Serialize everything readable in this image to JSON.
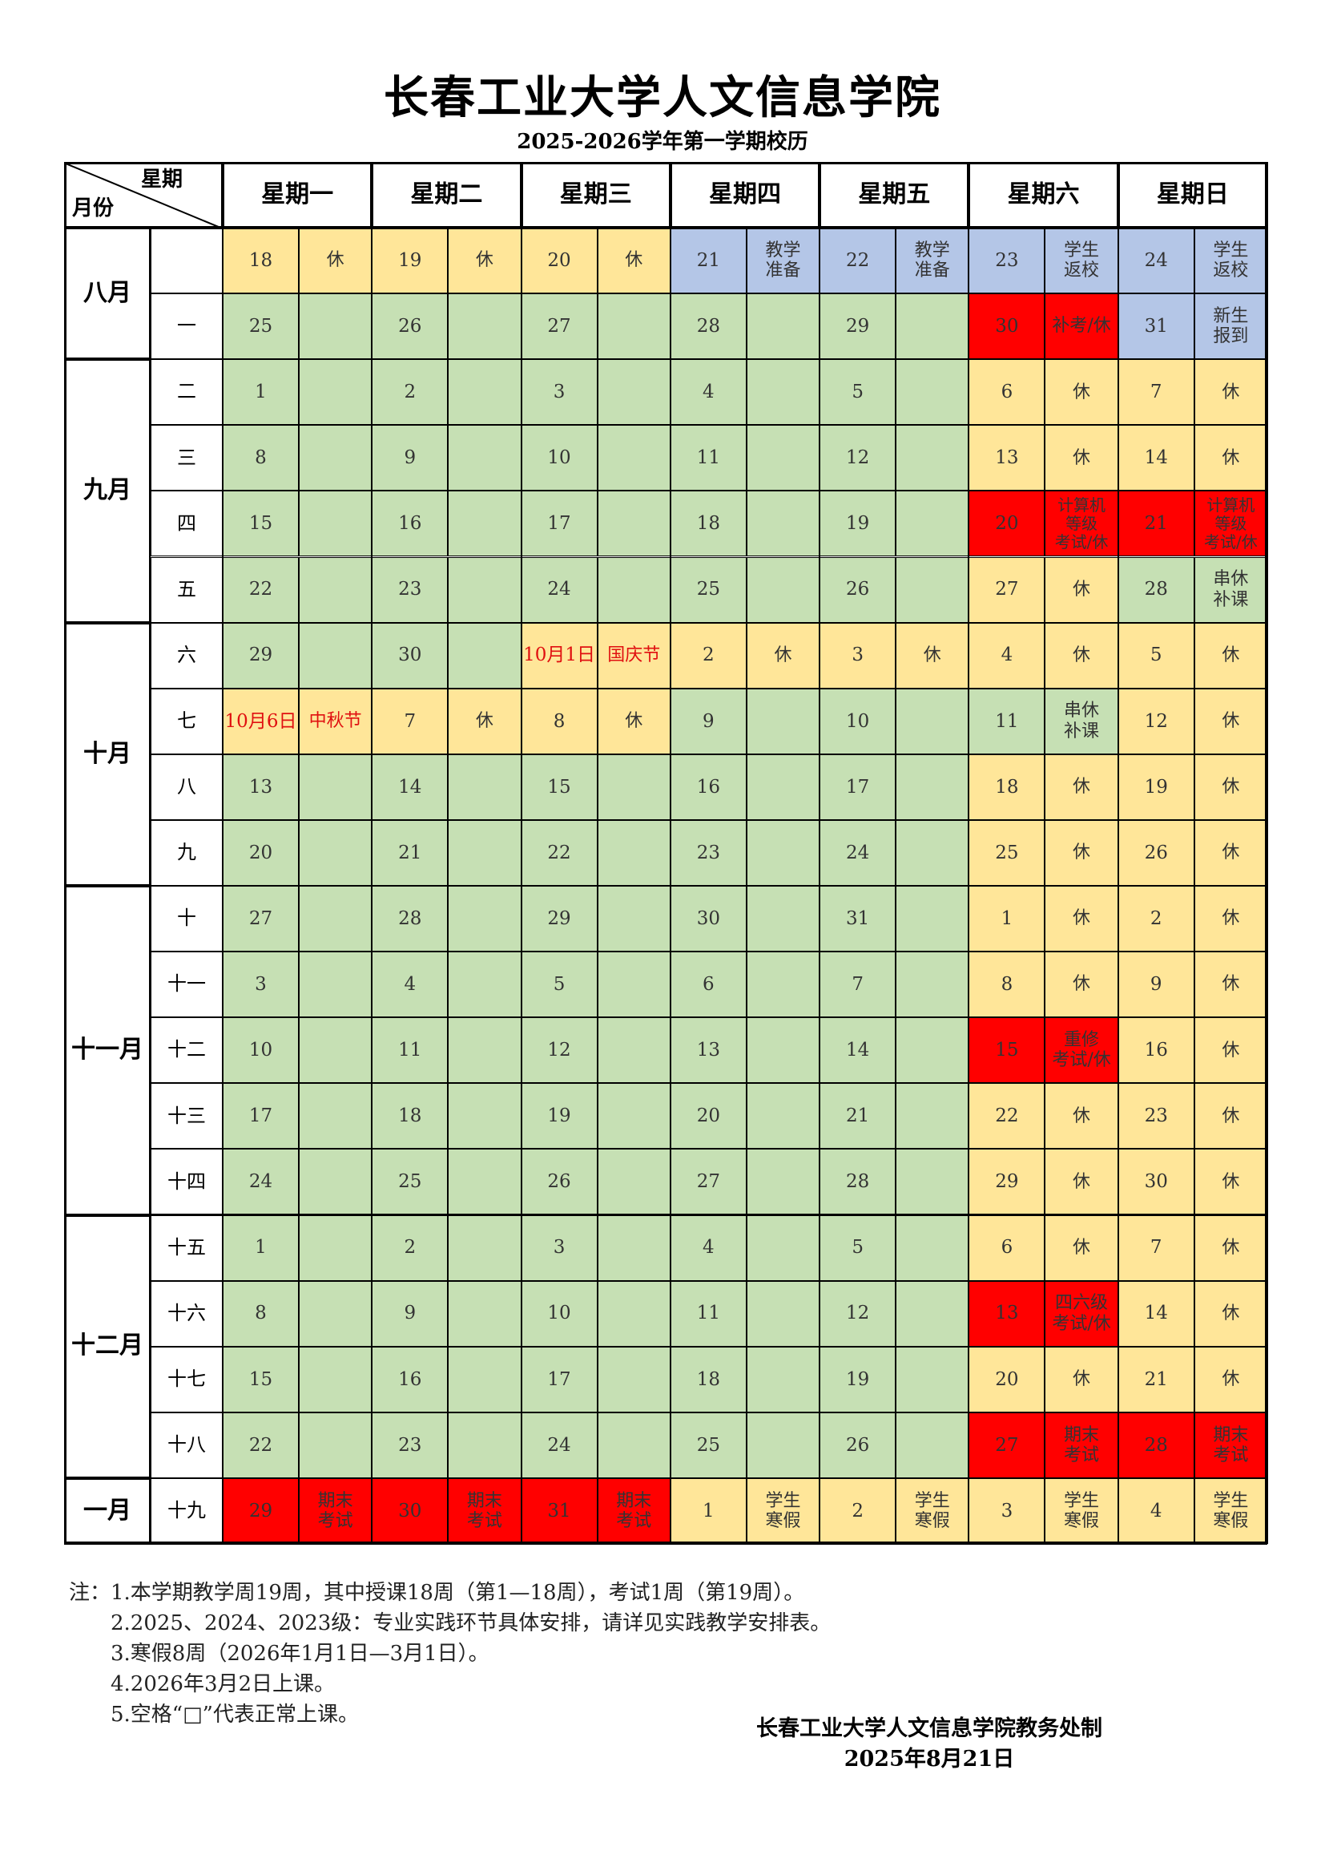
{
  "title": "长春工业大学人文信息学院",
  "subtitle": "2025-2026学年第一学期校历",
  "header": {
    "corner_top": "星期",
    "corner_bottom": "月份",
    "days": [
      "星期一",
      "星期二",
      "星期三",
      "星期四",
      "星期五",
      "星期六",
      "星期日"
    ]
  },
  "colors": {
    "yellow": "#ffe699",
    "blue": "#b4c6e7",
    "green": "#c6e0b4",
    "red": "#ff0000",
    "header": "#ffffff"
  },
  "months": [
    {
      "label": "八月",
      "rows": 2
    },
    {
      "label": "九月",
      "rows": 4
    },
    {
      "label": "十月",
      "rows": 4
    },
    {
      "label": "十一月",
      "rows": 5
    },
    {
      "label": "十二月",
      "rows": 4
    },
    {
      "label": "一月",
      "rows": 1
    }
  ],
  "weeks": [
    {
      "week": "",
      "days": [
        {
          "d": "18",
          "n": "休",
          "c": "yellow"
        },
        {
          "d": "19",
          "n": "休",
          "c": "yellow"
        },
        {
          "d": "20",
          "n": "休",
          "c": "yellow"
        },
        {
          "d": "21",
          "n": "教学\n准备",
          "c": "blue"
        },
        {
          "d": "22",
          "n": "教学\n准备",
          "c": "blue"
        },
        {
          "d": "23",
          "n": "学生\n返校",
          "c": "blue"
        },
        {
          "d": "24",
          "n": "学生\n返校",
          "c": "blue"
        }
      ]
    },
    {
      "week": "一",
      "days": [
        {
          "d": "25",
          "n": "",
          "c": "green"
        },
        {
          "d": "26",
          "n": "",
          "c": "green"
        },
        {
          "d": "27",
          "n": "",
          "c": "green"
        },
        {
          "d": "28",
          "n": "",
          "c": "green"
        },
        {
          "d": "29",
          "n": "",
          "c": "green"
        },
        {
          "d": "30",
          "n": "补考/休",
          "c": "red"
        },
        {
          "d": "31",
          "n": "新生\n报到",
          "c": "blue"
        }
      ]
    },
    {
      "week": "二",
      "days": [
        {
          "d": "1",
          "n": "",
          "c": "green"
        },
        {
          "d": "2",
          "n": "",
          "c": "green"
        },
        {
          "d": "3",
          "n": "",
          "c": "green"
        },
        {
          "d": "4",
          "n": "",
          "c": "green"
        },
        {
          "d": "5",
          "n": "",
          "c": "green"
        },
        {
          "d": "6",
          "n": "休",
          "c": "yellow"
        },
        {
          "d": "7",
          "n": "休",
          "c": "yellow"
        }
      ]
    },
    {
      "week": "三",
      "days": [
        {
          "d": "8",
          "n": "",
          "c": "green"
        },
        {
          "d": "9",
          "n": "",
          "c": "green"
        },
        {
          "d": "10",
          "n": "",
          "c": "green"
        },
        {
          "d": "11",
          "n": "",
          "c": "green"
        },
        {
          "d": "12",
          "n": "",
          "c": "green"
        },
        {
          "d": "13",
          "n": "休",
          "c": "yellow"
        },
        {
          "d": "14",
          "n": "休",
          "c": "yellow"
        }
      ]
    },
    {
      "week": "四",
      "days": [
        {
          "d": "15",
          "n": "",
          "c": "green"
        },
        {
          "d": "16",
          "n": "",
          "c": "green"
        },
        {
          "d": "17",
          "n": "",
          "c": "green"
        },
        {
          "d": "18",
          "n": "",
          "c": "green"
        },
        {
          "d": "19",
          "n": "",
          "c": "green"
        },
        {
          "d": "20",
          "n": "计算机\n等级\n考试/休",
          "c": "red"
        },
        {
          "d": "21",
          "n": "计算机\n等级\n考试/休",
          "c": "red"
        }
      ]
    },
    {
      "week": "五",
      "days": [
        {
          "d": "22",
          "n": "",
          "c": "green"
        },
        {
          "d": "23",
          "n": "",
          "c": "green"
        },
        {
          "d": "24",
          "n": "",
          "c": "green"
        },
        {
          "d": "25",
          "n": "",
          "c": "green"
        },
        {
          "d": "26",
          "n": "",
          "c": "green"
        },
        {
          "d": "27",
          "n": "休",
          "c": "yellow"
        },
        {
          "d": "28",
          "n": "串休\n补课",
          "c": "green"
        }
      ]
    },
    {
      "week": "六",
      "days": [
        {
          "d": "29",
          "n": "",
          "c": "green"
        },
        {
          "d": "30",
          "n": "",
          "c": "green"
        },
        {
          "d": "10月1日",
          "n": "国庆节",
          "c": "yellow",
          "red": true
        },
        {
          "d": "2",
          "n": "休",
          "c": "yellow"
        },
        {
          "d": "3",
          "n": "休",
          "c": "yellow"
        },
        {
          "d": "4",
          "n": "休",
          "c": "yellow"
        },
        {
          "d": "5",
          "n": "休",
          "c": "yellow"
        }
      ]
    },
    {
      "week": "七",
      "days": [
        {
          "d": "10月6日",
          "n": "中秋节",
          "c": "yellow",
          "red": true
        },
        {
          "d": "7",
          "n": "休",
          "c": "yellow"
        },
        {
          "d": "8",
          "n": "休",
          "c": "yellow"
        },
        {
          "d": "9",
          "n": "",
          "c": "green"
        },
        {
          "d": "10",
          "n": "",
          "c": "green"
        },
        {
          "d": "11",
          "n": "串休\n补课",
          "c": "green"
        },
        {
          "d": "12",
          "n": "休",
          "c": "yellow"
        }
      ]
    },
    {
      "week": "八",
      "days": [
        {
          "d": "13",
          "n": "",
          "c": "green"
        },
        {
          "d": "14",
          "n": "",
          "c": "green"
        },
        {
          "d": "15",
          "n": "",
          "c": "green"
        },
        {
          "d": "16",
          "n": "",
          "c": "green"
        },
        {
          "d": "17",
          "n": "",
          "c": "green"
        },
        {
          "d": "18",
          "n": "休",
          "c": "yellow"
        },
        {
          "d": "19",
          "n": "休",
          "c": "yellow"
        }
      ]
    },
    {
      "week": "九",
      "days": [
        {
          "d": "20",
          "n": "",
          "c": "green"
        },
        {
          "d": "21",
          "n": "",
          "c": "green"
        },
        {
          "d": "22",
          "n": "",
          "c": "green"
        },
        {
          "d": "23",
          "n": "",
          "c": "green"
        },
        {
          "d": "24",
          "n": "",
          "c": "green"
        },
        {
          "d": "25",
          "n": "休",
          "c": "yellow"
        },
        {
          "d": "26",
          "n": "休",
          "c": "yellow"
        }
      ]
    },
    {
      "week": "十",
      "days": [
        {
          "d": "27",
          "n": "",
          "c": "green"
        },
        {
          "d": "28",
          "n": "",
          "c": "green"
        },
        {
          "d": "29",
          "n": "",
          "c": "green"
        },
        {
          "d": "30",
          "n": "",
          "c": "green"
        },
        {
          "d": "31",
          "n": "",
          "c": "green"
        },
        {
          "d": "1",
          "n": "休",
          "c": "yellow"
        },
        {
          "d": "2",
          "n": "休",
          "c": "yellow"
        }
      ]
    },
    {
      "week": "十一",
      "days": [
        {
          "d": "3",
          "n": "",
          "c": "green"
        },
        {
          "d": "4",
          "n": "",
          "c": "green"
        },
        {
          "d": "5",
          "n": "",
          "c": "green"
        },
        {
          "d": "6",
          "n": "",
          "c": "green"
        },
        {
          "d": "7",
          "n": "",
          "c": "green"
        },
        {
          "d": "8",
          "n": "休",
          "c": "yellow"
        },
        {
          "d": "9",
          "n": "休",
          "c": "yellow"
        }
      ]
    },
    {
      "week": "十二",
      "days": [
        {
          "d": "10",
          "n": "",
          "c": "green"
        },
        {
          "d": "11",
          "n": "",
          "c": "green"
        },
        {
          "d": "12",
          "n": "",
          "c": "green"
        },
        {
          "d": "13",
          "n": "",
          "c": "green"
        },
        {
          "d": "14",
          "n": "",
          "c": "green"
        },
        {
          "d": "15",
          "n": "重修\n考试/休",
          "c": "red"
        },
        {
          "d": "16",
          "n": "休",
          "c": "yellow"
        }
      ]
    },
    {
      "week": "十三",
      "days": [
        {
          "d": "17",
          "n": "",
          "c": "green"
        },
        {
          "d": "18",
          "n": "",
          "c": "green"
        },
        {
          "d": "19",
          "n": "",
          "c": "green"
        },
        {
          "d": "20",
          "n": "",
          "c": "green"
        },
        {
          "d": "21",
          "n": "",
          "c": "green"
        },
        {
          "d": "22",
          "n": "休",
          "c": "yellow"
        },
        {
          "d": "23",
          "n": "休",
          "c": "yellow"
        }
      ]
    },
    {
      "week": "十四",
      "days": [
        {
          "d": "24",
          "n": "",
          "c": "green"
        },
        {
          "d": "25",
          "n": "",
          "c": "green"
        },
        {
          "d": "26",
          "n": "",
          "c": "green"
        },
        {
          "d": "27",
          "n": "",
          "c": "green"
        },
        {
          "d": "28",
          "n": "",
          "c": "green"
        },
        {
          "d": "29",
          "n": "休",
          "c": "yellow"
        },
        {
          "d": "30",
          "n": "休",
          "c": "yellow"
        }
      ]
    },
    {
      "week": "十五",
      "days": [
        {
          "d": "1",
          "n": "",
          "c": "green"
        },
        {
          "d": "2",
          "n": "",
          "c": "green"
        },
        {
          "d": "3",
          "n": "",
          "c": "green"
        },
        {
          "d": "4",
          "n": "",
          "c": "green"
        },
        {
          "d": "5",
          "n": "",
          "c": "green"
        },
        {
          "d": "6",
          "n": "休",
          "c": "yellow"
        },
        {
          "d": "7",
          "n": "休",
          "c": "yellow"
        }
      ]
    },
    {
      "week": "十六",
      "days": [
        {
          "d": "8",
          "n": "",
          "c": "green"
        },
        {
          "d": "9",
          "n": "",
          "c": "green"
        },
        {
          "d": "10",
          "n": "",
          "c": "green"
        },
        {
          "d": "11",
          "n": "",
          "c": "green"
        },
        {
          "d": "12",
          "n": "",
          "c": "green"
        },
        {
          "d": "13",
          "n": "四六级\n考试/休",
          "c": "red"
        },
        {
          "d": "14",
          "n": "休",
          "c": "yellow"
        }
      ]
    },
    {
      "week": "十七",
      "days": [
        {
          "d": "15",
          "n": "",
          "c": "green"
        },
        {
          "d": "16",
          "n": "",
          "c": "green"
        },
        {
          "d": "17",
          "n": "",
          "c": "green"
        },
        {
          "d": "18",
          "n": "",
          "c": "green"
        },
        {
          "d": "19",
          "n": "",
          "c": "green"
        },
        {
          "d": "20",
          "n": "休",
          "c": "yellow"
        },
        {
          "d": "21",
          "n": "休",
          "c": "yellow"
        }
      ]
    },
    {
      "week": "十八",
      "days": [
        {
          "d": "22",
          "n": "",
          "c": "green"
        },
        {
          "d": "23",
          "n": "",
          "c": "green"
        },
        {
          "d": "24",
          "n": "",
          "c": "green"
        },
        {
          "d": "25",
          "n": "",
          "c": "green"
        },
        {
          "d": "26",
          "n": "",
          "c": "green"
        },
        {
          "d": "27",
          "n": "期末\n考试",
          "c": "red"
        },
        {
          "d": "28",
          "n": "期末\n考试",
          "c": "red"
        }
      ]
    },
    {
      "week": "十九",
      "days": [
        {
          "d": "29",
          "n": "期末\n考试",
          "c": "red"
        },
        {
          "d": "30",
          "n": "期末\n考试",
          "c": "red"
        },
        {
          "d": "31",
          "n": "期末\n考试",
          "c": "red"
        },
        {
          "d": "1",
          "n": "学生\n寒假",
          "c": "yellow"
        },
        {
          "d": "2",
          "n": "学生\n寒假",
          "c": "yellow"
        },
        {
          "d": "3",
          "n": "学生\n寒假",
          "c": "yellow"
        },
        {
          "d": "4",
          "n": "学生\n寒假",
          "c": "yellow"
        }
      ]
    }
  ],
  "notes": [
    "注：1.本学期教学周19周，其中授课18周（第1—18周），考试1周（第19周）。",
    "　　2.2025、2024、2023级：专业实践环节具体安排，请详见实践教学安排表。",
    "　　3.寒假8周（2026年1月1日—3月1日）。",
    "　　4.2026年3月2日上课。",
    "　　5.空格“□”代表正常上课。"
  ],
  "footer": {
    "org": "长春工业大学人文信息学院教务处制",
    "date": "2025年8月21日"
  }
}
